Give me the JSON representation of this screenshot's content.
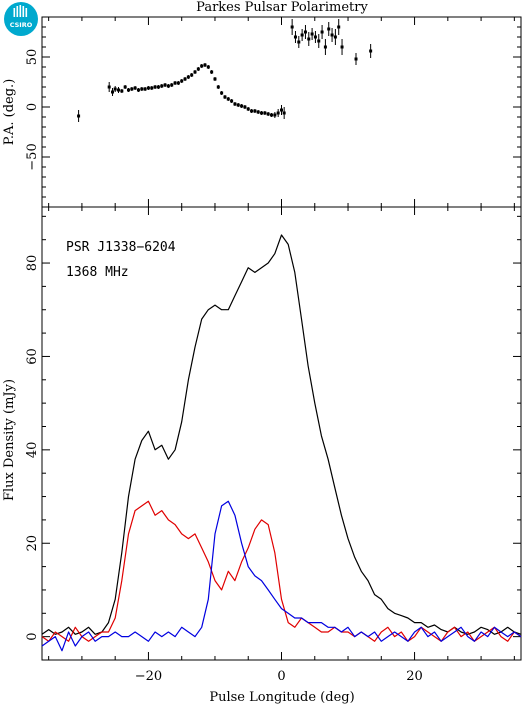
{
  "title": "Parkes Pulsar Polarimetry",
  "logo_text": "CSIRO",
  "colors": {
    "total": "#000000",
    "linear": "#e00000",
    "circular": "#0000e0",
    "logo": "#00a9ce",
    "frame": "#000000"
  },
  "chart_data": [
    {
      "type": "scatter",
      "panel": "position-angle",
      "ylabel": "P.A. (deg.)",
      "xlim": [
        -36,
        36
      ],
      "ylim": [
        -100,
        90
      ],
      "yticks": [
        -50,
        0,
        50
      ],
      "xticks": [
        -20,
        0,
        20
      ],
      "x": [
        -30.5,
        -25.9,
        -25.4,
        -25.0,
        -24.5,
        -24.0,
        -23.5,
        -23.0,
        -22.5,
        -22.0,
        -21.5,
        -21.0,
        -20.5,
        -20.0,
        -19.5,
        -19.0,
        -18.5,
        -18.0,
        -17.5,
        -17.0,
        -16.5,
        -16.0,
        -15.5,
        -15.0,
        -14.5,
        -14.0,
        -13.5,
        -13.0,
        -12.5,
        -12.0,
        -11.5,
        -11.0,
        -10.5,
        -10.0,
        -9.5,
        -9.0,
        -8.5,
        -8.0,
        -7.5,
        -7.0,
        -6.5,
        -6.0,
        -5.5,
        -5.0,
        -4.5,
        -4.0,
        -3.5,
        -3.0,
        -2.5,
        -2.0,
        -1.5,
        -1.0,
        -0.5,
        0.0,
        0.4,
        1.6,
        2.1,
        2.6,
        3.1,
        3.6,
        4.1,
        4.6,
        5.1,
        5.6,
        6.1,
        6.6,
        7.1,
        7.6,
        8.1,
        8.6,
        9.1,
        11.2,
        13.4
      ],
      "y": [
        -9,
        20,
        15,
        18,
        17,
        16,
        20,
        17,
        18,
        19,
        17,
        18,
        18,
        19,
        19,
        20,
        20,
        21,
        22,
        21,
        22,
        24,
        24,
        26,
        28,
        30,
        32,
        35,
        38,
        41,
        42,
        40,
        35,
        28,
        20,
        14,
        10,
        8,
        6,
        3,
        2,
        1,
        0,
        -2,
        -4,
        -4,
        -5,
        -6,
        -6,
        -7,
        -8,
        -8,
        -6,
        -3,
        -6,
        80,
        70,
        65,
        72,
        75,
        68,
        73,
        70,
        66,
        75,
        60,
        78,
        72,
        70,
        80,
        60,
        48,
        56
      ],
      "err": [
        6,
        5,
        4,
        3,
        3,
        2,
        2,
        2,
        2,
        2,
        2,
        2,
        2,
        2,
        2,
        2,
        2,
        2,
        2,
        2,
        2,
        2,
        2,
        2,
        2,
        2,
        2,
        2,
        2,
        2,
        2,
        2,
        2,
        2,
        2,
        2,
        2,
        2,
        2,
        2,
        2,
        2,
        2,
        2,
        2,
        2,
        2,
        2,
        2,
        2,
        2,
        3,
        4,
        5,
        6,
        8,
        6,
        6,
        6,
        7,
        7,
        6,
        6,
        7,
        7,
        8,
        7,
        7,
        8,
        8,
        8,
        6,
        7
      ]
    },
    {
      "type": "line",
      "panel": "profile",
      "annotation_1": "PSR J1338−6204",
      "annotation_2": "1368 MHz",
      "xlabel": "Pulse Longitude (deg)",
      "ylabel": "Flux Density (mJy)",
      "xlim": [
        -36,
        36
      ],
      "ylim": [
        -5,
        92
      ],
      "xticks": [
        -20,
        0,
        20
      ],
      "yticks": [
        0,
        20,
        40,
        60,
        80
      ],
      "xtick_labels": [
        "−20",
        "0",
        "20"
      ],
      "x": [
        -36,
        -35,
        -34,
        -33,
        -32,
        -31,
        -30,
        -29,
        -28,
        -27,
        -26,
        -25,
        -24,
        -23,
        -22,
        -21,
        -20,
        -19,
        -18,
        -17,
        -16,
        -15,
        -14,
        -13,
        -12,
        -11,
        -10,
        -9,
        -8,
        -7,
        -6,
        -5,
        -4,
        -3,
        -2,
        -1,
        0,
        1,
        2,
        3,
        4,
        5,
        6,
        7,
        8,
        9,
        10,
        11,
        12,
        13,
        14,
        15,
        16,
        17,
        18,
        19,
        20,
        21,
        22,
        23,
        24,
        25,
        26,
        27,
        28,
        29,
        30,
        31,
        32,
        33,
        34,
        35,
        36
      ],
      "series": [
        {
          "key": "total",
          "values": [
            0.5,
            1.5,
            0.5,
            1.0,
            2.0,
            0.5,
            1.0,
            2.0,
            0.5,
            1.0,
            3.0,
            8,
            18,
            30,
            38,
            42,
            44,
            40,
            41,
            38,
            40,
            46,
            55,
            62,
            68,
            70,
            71,
            70,
            70,
            73,
            76,
            79,
            78,
            79,
            80,
            82,
            86,
            84,
            78,
            68,
            58,
            50,
            43,
            38,
            32,
            26,
            21,
            17,
            14,
            12,
            9,
            8,
            6,
            5,
            4.5,
            4,
            3,
            3,
            2,
            2.5,
            1.5,
            1,
            2,
            1,
            0.5,
            1,
            2,
            1.5,
            0.5,
            1,
            2,
            1,
            0.5
          ]
        },
        {
          "key": "linear",
          "values": [
            0,
            -1,
            1,
            0,
            -1,
            2,
            0,
            -1,
            0,
            1,
            1,
            4,
            12,
            22,
            27,
            28,
            29,
            26,
            27,
            25,
            24,
            22,
            21,
            22,
            19,
            16,
            12,
            10,
            14,
            12,
            16,
            19,
            23,
            25,
            24,
            18,
            8,
            3,
            2,
            4,
            3,
            2,
            1,
            1,
            2,
            1,
            1,
            0,
            1,
            0,
            -1,
            1,
            2,
            0,
            1,
            -1,
            0,
            2,
            1,
            0,
            -1,
            1,
            2,
            0,
            1,
            -1,
            0,
            1,
            2,
            0,
            -1,
            1,
            0
          ]
        },
        {
          "key": "circular",
          "values": [
            -2,
            -1,
            0,
            -3,
            1,
            -2,
            0,
            1,
            -1,
            0,
            0,
            1,
            0,
            0,
            1,
            0,
            -1,
            1,
            0,
            1,
            0,
            2,
            1,
            0,
            2,
            8,
            22,
            28,
            29,
            26,
            20,
            15,
            13,
            12,
            10,
            8,
            6,
            5,
            4,
            4,
            3,
            3,
            3,
            2,
            2,
            1,
            2,
            0,
            1,
            0,
            1,
            -1,
            0,
            1,
            0,
            -1,
            1,
            2,
            0,
            1,
            -1,
            0,
            1,
            2,
            0,
            -1,
            1,
            0,
            2,
            1,
            0,
            1,
            0
          ]
        }
      ]
    }
  ]
}
